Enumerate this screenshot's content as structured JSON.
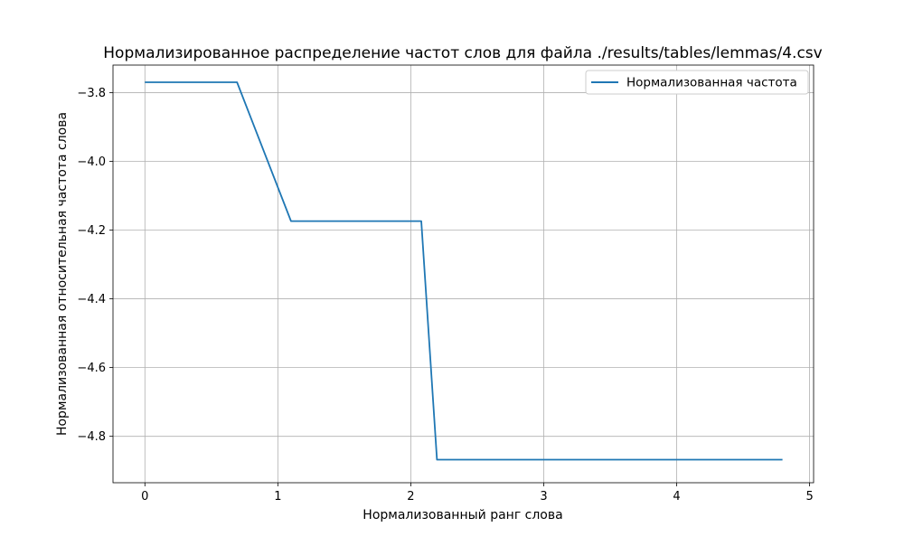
{
  "chart_data": {
    "type": "line",
    "title": "Нормализированное распределение частот слов для файла ./results/tables/lemmas/4.csv",
    "xlabel": "Нормализованный ранг слова",
    "ylabel": "Нормализованная относительная частота слова",
    "xlim": [
      -0.24,
      5.03
    ],
    "ylim": [
      -4.935,
      -3.72
    ],
    "xticks": [
      0,
      1,
      2,
      3,
      4,
      5
    ],
    "xtick_labels": [
      "0",
      "1",
      "2",
      "3",
      "4",
      "5"
    ],
    "yticks": [
      -3.8,
      -4.0,
      -4.2,
      -4.4,
      -4.6,
      -4.8
    ],
    "ytick_labels": [
      "−3.8",
      "−4.0",
      "−4.2",
      "−4.4",
      "−4.6",
      "−4.8"
    ],
    "grid": true,
    "legend_position": "upper right",
    "series": [
      {
        "name": "Нормализованная частота",
        "color": "#1f77b4",
        "x": [
          0.0,
          0.693,
          1.099,
          1.386,
          1.609,
          1.792,
          1.946,
          2.079,
          2.197,
          2.303,
          2.398,
          2.485,
          2.565,
          2.639,
          2.708,
          2.773,
          2.833,
          2.89,
          2.944,
          2.996,
          3.045,
          3.091,
          3.135,
          3.178,
          3.219,
          3.258,
          3.296,
          3.332,
          3.367,
          3.401,
          3.434,
          3.466,
          3.497,
          3.526,
          3.555,
          3.584,
          3.611,
          3.638,
          3.664,
          3.689,
          3.714,
          3.738,
          3.761,
          3.784,
          3.807,
          3.829,
          3.85,
          3.871,
          3.892,
          3.912,
          3.932,
          3.951,
          3.97,
          3.989,
          4.007,
          4.025,
          4.043,
          4.06,
          4.078,
          4.094,
          4.111,
          4.127,
          4.143,
          4.159,
          4.174,
          4.19,
          4.205,
          4.22,
          4.234,
          4.248,
          4.263,
          4.277,
          4.29,
          4.304,
          4.317,
          4.331,
          4.344,
          4.357,
          4.369,
          4.382,
          4.394,
          4.407,
          4.419,
          4.431,
          4.443,
          4.454,
          4.466,
          4.477,
          4.489,
          4.5,
          4.511,
          4.522,
          4.533,
          4.543,
          4.554,
          4.564,
          4.575,
          4.585,
          4.595,
          4.605,
          4.615,
          4.625,
          4.635,
          4.644,
          4.654,
          4.663,
          4.673,
          4.682,
          4.691,
          4.7,
          4.71,
          4.719,
          4.727,
          4.736,
          4.745,
          4.754,
          4.762,
          4.771,
          4.779,
          4.787,
          4.796
        ],
        "y": [
          -3.77,
          -3.77,
          -4.174,
          -4.174,
          -4.174,
          -4.174,
          -4.174,
          -4.174,
          -4.868,
          -4.868,
          -4.868,
          -4.868,
          -4.868,
          -4.868,
          -4.868,
          -4.868,
          -4.868,
          -4.868,
          -4.868,
          -4.868,
          -4.868,
          -4.868,
          -4.868,
          -4.868,
          -4.868,
          -4.868,
          -4.868,
          -4.868,
          -4.868,
          -4.868,
          -4.868,
          -4.868,
          -4.868,
          -4.868,
          -4.868,
          -4.868,
          -4.868,
          -4.868,
          -4.868,
          -4.868,
          -4.868,
          -4.868,
          -4.868,
          -4.868,
          -4.868,
          -4.868,
          -4.868,
          -4.868,
          -4.868,
          -4.868,
          -4.868,
          -4.868,
          -4.868,
          -4.868,
          -4.868,
          -4.868,
          -4.868,
          -4.868,
          -4.868,
          -4.868,
          -4.868,
          -4.868,
          -4.868,
          -4.868,
          -4.868,
          -4.868,
          -4.868,
          -4.868,
          -4.868,
          -4.868,
          -4.868,
          -4.868,
          -4.868,
          -4.868,
          -4.868,
          -4.868,
          -4.868,
          -4.868,
          -4.868,
          -4.868,
          -4.868,
          -4.868,
          -4.868,
          -4.868,
          -4.868,
          -4.868,
          -4.868,
          -4.868,
          -4.868,
          -4.868,
          -4.868,
          -4.868,
          -4.868,
          -4.868,
          -4.868,
          -4.868,
          -4.868,
          -4.868,
          -4.868,
          -4.868,
          -4.868,
          -4.868,
          -4.868,
          -4.868,
          -4.868,
          -4.868,
          -4.868,
          -4.868,
          -4.868,
          -4.868,
          -4.868,
          -4.868,
          -4.868,
          -4.868,
          -4.868,
          -4.868,
          -4.868,
          -4.868,
          -4.868,
          -4.868,
          -4.868
        ]
      }
    ]
  }
}
